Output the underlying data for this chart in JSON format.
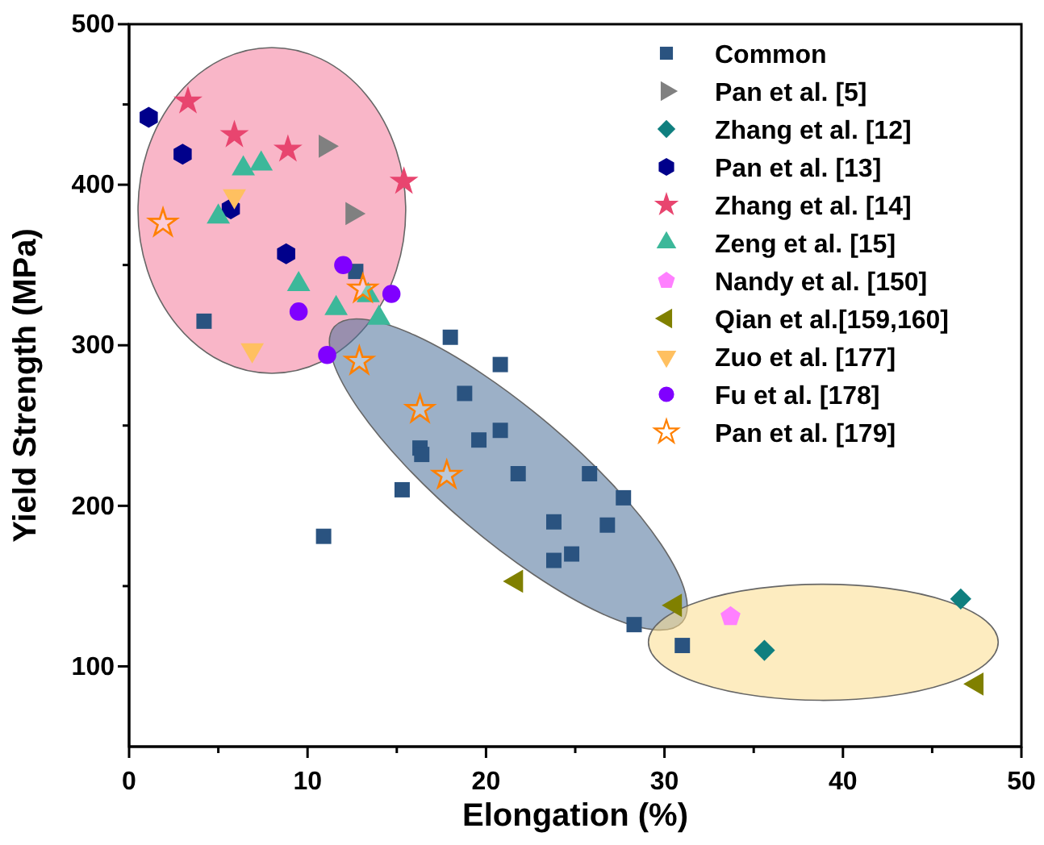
{
  "chart_data": {
    "type": "scatter",
    "xlabel": "Elongation (%)",
    "ylabel": "Yield Strength (MPa)",
    "xlim": [
      0,
      50
    ],
    "xticks": [
      0,
      {
        "value": 5,
        "label": null
      },
      10,
      {
        "value": 15,
        "label": null
      },
      20,
      {
        "value": 25,
        "label": null
      },
      30,
      {
        "value": 35,
        "label": null
      },
      40,
      {
        "value": 45,
        "label": null
      },
      50
    ],
    "ylim": [
      50,
      500
    ],
    "yticks": [
      100,
      {
        "value": 150,
        "label": null
      },
      200,
      {
        "value": 250,
        "label": null
      },
      300,
      {
        "value": 350,
        "label": null
      },
      400,
      {
        "value": 450,
        "label": null
      },
      500
    ],
    "grid": false,
    "legend": "top right",
    "series": [
      {
        "name": "Common",
        "color": "#2a5380",
        "marker": "square",
        "x": [
          18,
          20.8,
          18.8,
          20.8,
          19.6,
          16.3,
          16.4,
          21.8,
          25.8,
          27.7,
          23.8,
          26.8,
          24.8,
          23.8,
          15.3,
          10.9,
          28.3,
          31,
          4.2,
          12.7
        ],
        "values": [
          305,
          288,
          270,
          247,
          241,
          236,
          232,
          220,
          220,
          205,
          190,
          188,
          170,
          166,
          210,
          181,
          126,
          113,
          315,
          346
        ]
      },
      {
        "name": "Pan et al. [5]",
        "color": "#808080",
        "marker": "triangle-right",
        "x": [
          11,
          12.5
        ],
        "values": [
          424,
          382
        ]
      },
      {
        "name": "Zhang et al. [12]",
        "color": "#0f7f7f",
        "marker": "diamond",
        "x": [
          46.6,
          35.6
        ],
        "values": [
          142,
          110
        ]
      },
      {
        "name": "Pan et al. [13]",
        "color": "#00008b",
        "x": [
          1.1,
          3,
          5.7,
          8.8
        ],
        "values": [
          442,
          419,
          385,
          357
        ]
      },
      {
        "name": "Zhang et al. [14]",
        "color": "#e8456f",
        "marker": "star",
        "x": [
          3.3,
          5.9,
          8.9,
          15.4
        ],
        "values": [
          452,
          431,
          422,
          402
        ]
      },
      {
        "name": "Zeng et al. [15]",
        "color": "#3cb89a",
        "marker": "triangle",
        "x": [
          6.4,
          7.4,
          5,
          9.5,
          11.6,
          13.4,
          14
        ],
        "values": [
          410,
          413,
          380,
          338,
          323,
          331,
          317
        ]
      },
      {
        "name": "Nandy et al. [150]",
        "color": "#ff80ff",
        "x": [
          33.7
        ],
        "values": [
          131
        ]
      },
      {
        "name": "Qian et al.[159,160]",
        "color": "#808000",
        "marker": "triangle-left",
        "x": [
          21.7,
          30.6,
          47.5
        ],
        "values": [
          153,
          138,
          89
        ]
      },
      {
        "name": "Zuo et al. [177]",
        "color": "#ffc060",
        "marker": "triangle-down",
        "x": [
          5.9,
          6.9
        ],
        "values": [
          393,
          297
        ]
      },
      {
        "name": "Fu et al. [178]",
        "color": "#8000ff",
        "marker": "circle",
        "x": [
          12,
          9.5,
          14.7,
          11.1
        ],
        "values": [
          350,
          321,
          332,
          294
        ]
      },
      {
        "name": "Pan et al. [179]",
        "color": "#ff8000",
        "marker": "star-open",
        "x": [
          1.9,
          13.1,
          12.9,
          16.3,
          17.8
        ],
        "values": [
          376,
          335,
          290,
          260,
          219
        ]
      }
    ]
  }
}
